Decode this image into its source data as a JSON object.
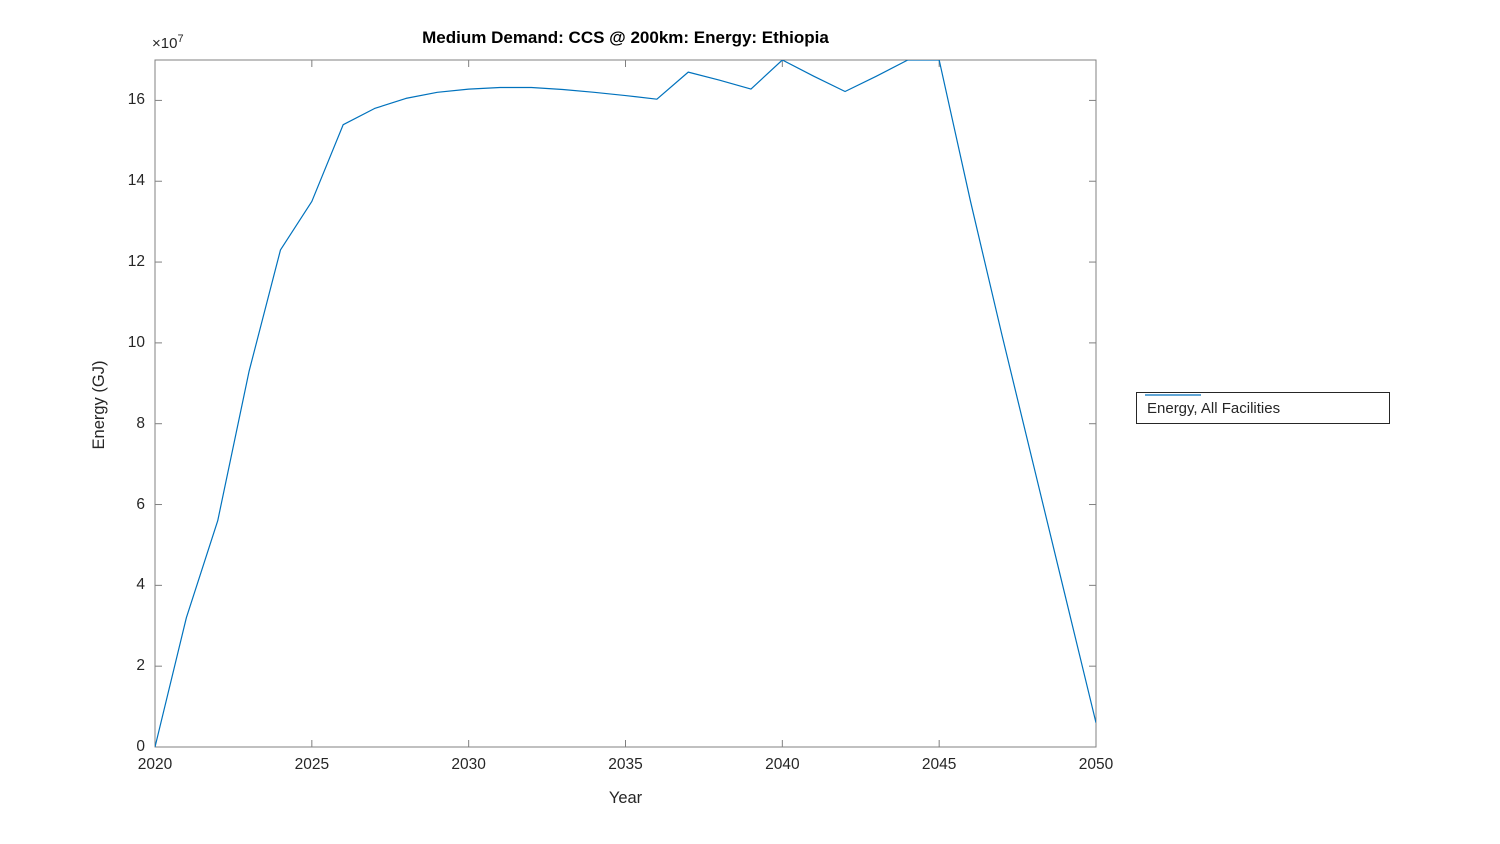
{
  "figure": {
    "title": "Medium Demand: CCS @ 200km: Energy: Ethiopia",
    "xlabel": "Year",
    "ylabel": "Energy (GJ)",
    "y_multiplier_base": "×10",
    "y_multiplier_exp": "7"
  },
  "chart_data": {
    "type": "line",
    "title": "Medium Demand: CCS @ 200km: Energy: Ethiopia",
    "xlabel": "Year",
    "ylabel": "Energy (GJ)",
    "y_unit_multiplier": 10000000,
    "xlim": [
      2020,
      2050
    ],
    "ylim_e7": [
      0,
      17
    ],
    "xticks": [
      2020,
      2025,
      2030,
      2035,
      2040,
      2045,
      2050
    ],
    "yticks_e7": [
      0,
      2,
      4,
      6,
      8,
      10,
      12,
      14,
      16
    ],
    "grid": false,
    "line_color": "#0072BD",
    "axis_color": "#808080",
    "x": [
      2020,
      2021,
      2022,
      2023,
      2024,
      2025,
      2026,
      2027,
      2028,
      2029,
      2030,
      2031,
      2032,
      2033,
      2034,
      2035,
      2036,
      2037,
      2038,
      2039,
      2040,
      2041,
      2042,
      2043,
      2044,
      2045,
      2046,
      2047,
      2048,
      2049,
      2050
    ],
    "series": [
      {
        "name": "Energy, All Facilities",
        "values_e7": [
          0.0,
          3.2,
          5.6,
          9.3,
          12.3,
          13.5,
          15.4,
          15.8,
          16.05,
          16.2,
          16.28,
          16.32,
          16.32,
          16.27,
          16.2,
          16.12,
          16.03,
          16.7,
          16.5,
          16.28,
          17.0,
          16.6,
          16.22,
          16.6,
          17.0,
          17.0,
          13.5,
          10.2,
          7.0,
          3.8,
          0.6
        ]
      }
    ],
    "legend": {
      "position": "right-outside",
      "entries": [
        "Energy, All Facilities"
      ]
    }
  }
}
